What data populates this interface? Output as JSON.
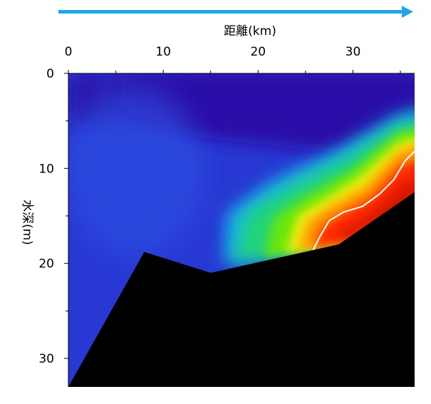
{
  "chart_data": {
    "type": "heatmap",
    "title": "",
    "xlabel": "距離(km)",
    "ylabel": "水深(m)",
    "x_axis_position": "top",
    "y_axis_inverted": true,
    "xlim": [
      0,
      36.5
    ],
    "ylim": [
      0,
      33
    ],
    "x_ticks": [
      0,
      10,
      20,
      30
    ],
    "y_ticks": [
      0,
      10,
      20,
      30
    ],
    "x_minor_step": 5,
    "y_minor_step": 5,
    "direction_arrow_color": "#1ea7e6",
    "colormap": [
      "#2b0fa8",
      "#2a46dc",
      "#1ab0e6",
      "#18d08a",
      "#3fe312",
      "#f2ee10",
      "#ff8a00",
      "#ff2000",
      "#d81200"
    ],
    "seabed": {
      "color": "#000000",
      "profile": [
        [
          0,
          33
        ],
        [
          8,
          18.8
        ],
        [
          15,
          21
        ],
        [
          28.5,
          18
        ],
        [
          36.5,
          12.5
        ]
      ]
    },
    "high_value_region": {
      "description": "warm colors concentrated near the seabed on the right side",
      "contour_color": "#ffffff",
      "contour": [
        [
          25.8,
          18.6
        ],
        [
          26.5,
          17.2
        ],
        [
          27.5,
          15.5
        ],
        [
          29,
          14.6
        ],
        [
          31,
          14
        ],
        [
          32.8,
          12.7
        ],
        [
          34.3,
          11.2
        ],
        [
          35.5,
          9.2
        ],
        [
          36.5,
          8.2
        ]
      ]
    }
  }
}
